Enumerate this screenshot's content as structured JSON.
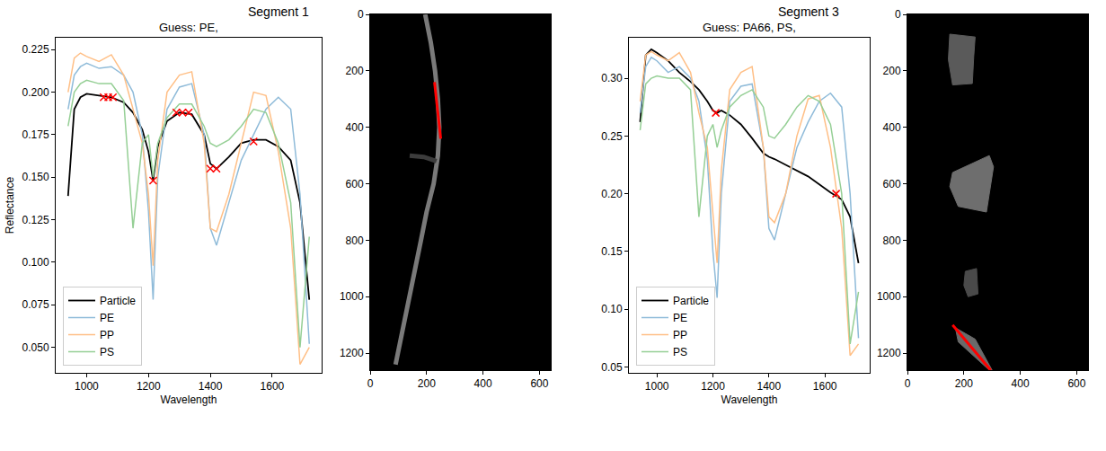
{
  "titles": [
    "Segment 1",
    "Segment 3"
  ],
  "chart_data": [
    {
      "type": "line",
      "title": "Guess: PE,",
      "x_label": "Wavelength",
      "y_label": "Reflectance",
      "xlim": [
        900,
        1760
      ],
      "xticks": [
        1000,
        1200,
        1400,
        1600
      ],
      "ylim": [
        0.035,
        0.232
      ],
      "yticks": [
        {
          "value": 0.05,
          "label": "0.050"
        },
        0.075,
        {
          "value": 0.1,
          "label": "0.100"
        },
        0.125,
        {
          "value": 0.15,
          "label": "0.150"
        },
        0.175,
        {
          "value": 0.2,
          "label": "0.200"
        },
        0.225
      ],
      "grid": false,
      "legend": "lower left",
      "x": [
        940,
        960,
        980,
        1000,
        1040,
        1080,
        1120,
        1150,
        1180,
        1200,
        1215,
        1230,
        1260,
        1300,
        1340,
        1380,
        1400,
        1420,
        1460,
        1500,
        1540,
        1580,
        1620,
        1660,
        1690,
        1720
      ],
      "series": [
        {
          "name": "Particle",
          "color": "#000000",
          "values": [
            0.139,
            0.19,
            0.197,
            0.199,
            0.198,
            0.197,
            0.194,
            0.188,
            0.178,
            0.165,
            0.148,
            0.168,
            0.183,
            0.188,
            0.187,
            0.175,
            0.158,
            0.155,
            0.162,
            0.17,
            0.172,
            0.172,
            0.168,
            0.16,
            0.135,
            0.078
          ]
        },
        {
          "name": "PE",
          "color": "#8fbbd9",
          "values": [
            0.19,
            0.21,
            0.215,
            0.217,
            0.214,
            0.215,
            0.21,
            0.2,
            0.175,
            0.13,
            0.078,
            0.15,
            0.19,
            0.203,
            0.205,
            0.175,
            0.12,
            0.11,
            0.135,
            0.16,
            0.175,
            0.19,
            0.197,
            0.19,
            0.14,
            0.052
          ]
        },
        {
          "name": "PP",
          "color": "#ffbf86",
          "values": [
            0.2,
            0.22,
            0.223,
            0.221,
            0.218,
            0.222,
            0.21,
            0.19,
            0.17,
            0.14,
            0.098,
            0.16,
            0.2,
            0.21,
            0.212,
            0.17,
            0.12,
            0.118,
            0.14,
            0.17,
            0.2,
            0.198,
            0.165,
            0.12,
            0.04,
            0.05
          ]
        },
        {
          "name": "PS",
          "color": "#95cf95",
          "values": [
            0.18,
            0.2,
            0.205,
            0.207,
            0.205,
            0.205,
            0.195,
            0.12,
            0.17,
            0.175,
            0.15,
            0.17,
            0.185,
            0.193,
            0.193,
            0.18,
            0.17,
            0.168,
            0.172,
            0.18,
            0.19,
            0.188,
            0.17,
            0.135,
            0.05,
            0.115
          ]
        },
        {
          "color": "#ff0000",
          "marker": "x",
          "x": [
            1055,
            1070,
            1085,
            1215,
            1290,
            1310,
            1330,
            1400,
            1420,
            1540
          ],
          "values": [
            0.197,
            0.197,
            0.197,
            0.148,
            0.188,
            0.188,
            0.188,
            0.155,
            0.155,
            0.171
          ]
        }
      ]
    },
    {
      "type": "image",
      "xlim": [
        0,
        640
      ],
      "xticks": [
        0,
        200,
        400,
        600
      ],
      "ylim": [
        1260,
        0
      ],
      "yticks": [
        0,
        200,
        400,
        600,
        800,
        1000,
        1200
      ],
      "grid": false,
      "series": [
        {
          "type": "line",
          "color": "#7a7a7a",
          "x": [
            195,
            215,
            230,
            240,
            245,
            240,
            225,
            200,
            180,
            160,
            140,
            120,
            90
          ],
          "values": [
            0,
            100,
            200,
            300,
            400,
            500,
            600,
            700,
            800,
            900,
            1000,
            1100,
            1240
          ]
        },
        {
          "type": "line",
          "color": "#3c3c3c",
          "x": [
            140,
            190,
            235
          ],
          "values": [
            500,
            505,
            520
          ]
        },
        {
          "type": "line",
          "color": "#ff0000",
          "x": [
            228,
            250
          ],
          "values": [
            240,
            440
          ]
        }
      ]
    },
    {
      "type": "line",
      "title": "Guess: PA66, PS,",
      "x_label": "Wavelength",
      "xlim": [
        900,
        1760
      ],
      "xticks": [
        1000,
        1200,
        1400,
        1600
      ],
      "ylim": [
        0.045,
        0.335
      ],
      "yticks": [
        0.05,
        {
          "value": 0.1,
          "label": "0.10"
        },
        0.15,
        {
          "value": 0.2,
          "label": "0.20"
        },
        0.25,
        {
          "value": 0.3,
          "label": "0.30"
        }
      ],
      "grid": false,
      "legend": "lower left",
      "x": [
        940,
        960,
        980,
        1000,
        1040,
        1080,
        1120,
        1150,
        1180,
        1200,
        1215,
        1230,
        1260,
        1300,
        1340,
        1380,
        1400,
        1420,
        1460,
        1500,
        1540,
        1580,
        1620,
        1660,
        1690,
        1720
      ],
      "series": [
        {
          "name": "Particle",
          "color": "#000000",
          "values": [
            0.262,
            0.32,
            0.325,
            0.322,
            0.315,
            0.305,
            0.297,
            0.29,
            0.28,
            0.272,
            0.27,
            0.272,
            0.268,
            0.26,
            0.248,
            0.235,
            0.232,
            0.23,
            0.225,
            0.22,
            0.215,
            0.208,
            0.201,
            0.195,
            0.18,
            0.14
          ]
        },
        {
          "name": "PE",
          "color": "#8fbbd9",
          "values": [
            0.27,
            0.31,
            0.318,
            0.315,
            0.305,
            0.31,
            0.3,
            0.28,
            0.23,
            0.15,
            0.11,
            0.2,
            0.28,
            0.293,
            0.295,
            0.24,
            0.17,
            0.16,
            0.2,
            0.24,
            0.262,
            0.28,
            0.287,
            0.275,
            0.2,
            0.075
          ]
        },
        {
          "name": "PP",
          "color": "#ffbf86",
          "values": [
            0.28,
            0.32,
            0.323,
            0.32,
            0.315,
            0.322,
            0.305,
            0.27,
            0.24,
            0.18,
            0.14,
            0.22,
            0.29,
            0.305,
            0.31,
            0.24,
            0.18,
            0.175,
            0.2,
            0.25,
            0.282,
            0.285,
            0.24,
            0.17,
            0.06,
            0.07
          ]
        },
        {
          "name": "PS",
          "color": "#95cf95",
          "values": [
            0.255,
            0.295,
            0.3,
            0.302,
            0.3,
            0.3,
            0.29,
            0.18,
            0.25,
            0.26,
            0.24,
            0.255,
            0.275,
            0.285,
            0.29,
            0.275,
            0.25,
            0.248,
            0.26,
            0.275,
            0.285,
            0.28,
            0.26,
            0.2,
            0.07,
            0.115
          ]
        },
        {
          "color": "#ff0000",
          "marker": "x",
          "x": [
            1210,
            1640
          ],
          "values": [
            0.27,
            0.2
          ]
        }
      ]
    },
    {
      "type": "image",
      "xlim": [
        0,
        640
      ],
      "xticks": [
        0,
        200,
        400,
        600
      ],
      "ylim": [
        1260,
        0
      ],
      "yticks": [
        0,
        200,
        400,
        600,
        800,
        1000,
        1200
      ],
      "grid": false,
      "series": [
        {
          "type": "polygon",
          "color": "#5a5a5a",
          "x": [
            150,
            240,
            235,
            230,
            160,
            145,
            150
          ],
          "values": [
            70,
            80,
            150,
            245,
            250,
            160,
            70
          ]
        },
        {
          "type": "polygon",
          "color": "#6e6e6e",
          "x": [
            160,
            290,
            305,
            280,
            180,
            150,
            160
          ],
          "values": [
            560,
            500,
            540,
            700,
            680,
            610,
            560
          ]
        },
        {
          "type": "polygon",
          "color": "#4a4a4a",
          "x": [
            205,
            245,
            250,
            215,
            200,
            205
          ],
          "values": [
            910,
            900,
            990,
            1000,
            960,
            910
          ]
        },
        {
          "type": "polygon",
          "color": "#6a6a6a",
          "x": [
            170,
            240,
            300,
            290,
            180,
            170
          ],
          "values": [
            1110,
            1150,
            1260,
            1260,
            1160,
            1110
          ]
        },
        {
          "type": "line",
          "color": "#ff0000",
          "x": [
            160,
            295
          ],
          "values": [
            1100,
            1260
          ]
        }
      ]
    }
  ]
}
